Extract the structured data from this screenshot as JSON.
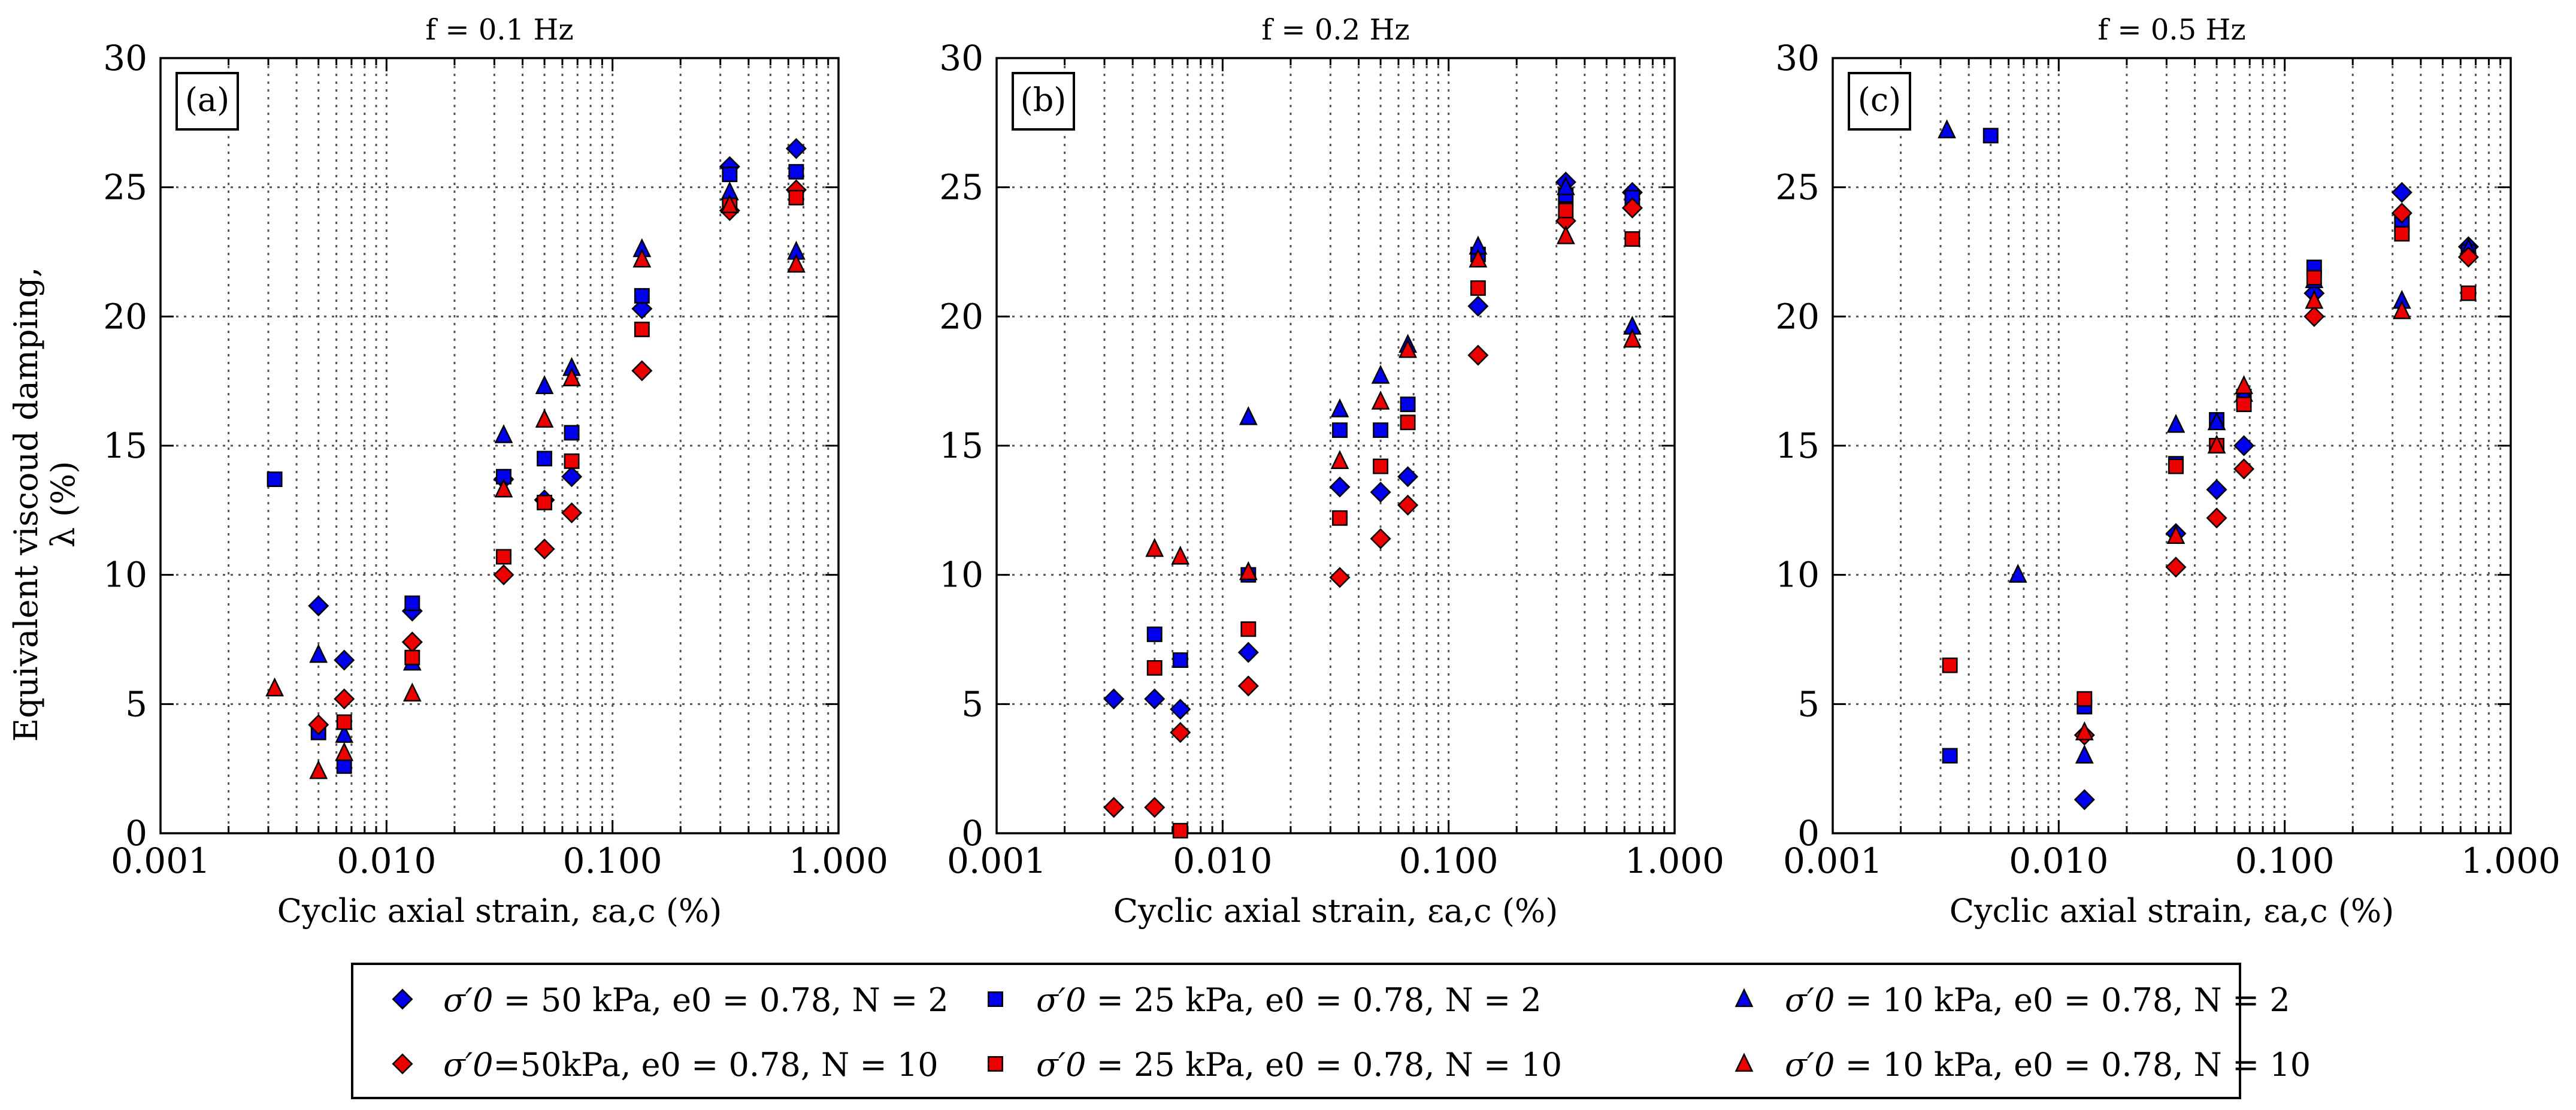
{
  "chart_data": [
    {
      "type": "scatter",
      "title": "f = 0.1 Hz",
      "panel_label": "(a)",
      "xlabel": "Cyclic axial strain, εa,c (%)",
      "ylabel_line1": "Equivalent viscoud damping,",
      "ylabel_line2": "λ (%)",
      "xscale": "log",
      "xlim": [
        0.001,
        1.0
      ],
      "ylim": [
        0,
        30
      ],
      "xticks": [
        0.001,
        0.01,
        0.1,
        1.0
      ],
      "xtick_labels": [
        "0.001",
        "0.010",
        "0.100",
        "1.000"
      ],
      "yticks": [
        0,
        5,
        10,
        15,
        20,
        25,
        30
      ],
      "ytick_labels": [
        "0",
        "5",
        "10",
        "15",
        "20",
        "25",
        "30"
      ],
      "series": [
        {
          "id": "s50n2",
          "x": [
            0.005,
            0.0065,
            0.013,
            0.033,
            0.05,
            0.066,
            0.135,
            0.33,
            0.65
          ],
          "y": [
            8.8,
            6.7,
            8.6,
            13.7,
            12.9,
            13.8,
            20.3,
            25.8,
            26.5
          ]
        },
        {
          "id": "s25n2",
          "x": [
            0.0032,
            0.005,
            0.0065,
            0.013,
            0.033,
            0.05,
            0.066,
            0.135,
            0.33,
            0.65
          ],
          "y": [
            13.7,
            3.9,
            2.6,
            8.9,
            13.8,
            14.5,
            15.5,
            20.8,
            25.5,
            25.6
          ]
        },
        {
          "id": "s10n2",
          "x": [
            0.005,
            0.0065,
            0.013,
            0.033,
            0.05,
            0.066,
            0.135,
            0.33,
            0.65
          ],
          "y": [
            6.9,
            3.8,
            6.6,
            15.4,
            17.3,
            18.0,
            22.6,
            24.8,
            22.5
          ]
        },
        {
          "id": "s50n10",
          "x": [
            0.005,
            0.0065,
            0.013,
            0.033,
            0.05,
            0.066,
            0.135,
            0.33,
            0.65
          ],
          "y": [
            4.2,
            5.2,
            7.4,
            10.0,
            11.0,
            12.4,
            17.9,
            24.1,
            24.9
          ]
        },
        {
          "id": "s25n10",
          "x": [
            0.0065,
            0.013,
            0.033,
            0.05,
            0.066,
            0.135,
            0.33,
            0.65
          ],
          "y": [
            4.3,
            6.8,
            10.7,
            12.8,
            14.4,
            19.5,
            24.3,
            24.6
          ]
        },
        {
          "id": "s10n10",
          "x": [
            0.0032,
            0.005,
            0.0065,
            0.013,
            0.033,
            0.05,
            0.066,
            0.135,
            0.33,
            0.65
          ],
          "y": [
            5.6,
            2.4,
            3.1,
            5.4,
            13.3,
            16.0,
            17.6,
            22.2,
            24.3,
            22.0
          ]
        }
      ]
    },
    {
      "type": "scatter",
      "title": "f = 0.2 Hz",
      "panel_label": "(b)",
      "xlabel": "Cyclic axial strain, εa,c (%)",
      "xscale": "log",
      "xlim": [
        0.001,
        1.0
      ],
      "ylim": [
        0,
        30
      ],
      "xticks": [
        0.001,
        0.01,
        0.1,
        1.0
      ],
      "xtick_labels": [
        "0.001",
        "0.010",
        "0.100",
        "1.000"
      ],
      "yticks": [
        0,
        5,
        10,
        15,
        20,
        25,
        30
      ],
      "ytick_labels": [
        "0",
        "5",
        "10",
        "15",
        "20",
        "25",
        "30"
      ],
      "series": [
        {
          "id": "s50n2",
          "x": [
            0.0033,
            0.005,
            0.0065,
            0.013,
            0.033,
            0.05,
            0.066,
            0.135,
            0.33,
            0.65
          ],
          "y": [
            5.2,
            5.2,
            4.8,
            7.0,
            13.4,
            13.2,
            13.8,
            20.4,
            25.2,
            24.8
          ]
        },
        {
          "id": "s25n2",
          "x": [
            0.005,
            0.0065,
            0.013,
            0.033,
            0.05,
            0.066,
            0.135,
            0.33,
            0.65
          ],
          "y": [
            7.7,
            6.7,
            10.0,
            15.6,
            15.6,
            16.6,
            22.4,
            24.7,
            24.6
          ]
        },
        {
          "id": "s10n2",
          "x": [
            0.013,
            0.033,
            0.05,
            0.066,
            0.135,
            0.33,
            0.65
          ],
          "y": [
            16.1,
            16.4,
            17.7,
            18.9,
            22.7,
            25.0,
            19.6
          ]
        },
        {
          "id": "s50n10",
          "x": [
            0.0033,
            0.005,
            0.0065,
            0.013,
            0.033,
            0.05,
            0.066,
            0.135,
            0.33,
            0.65
          ],
          "y": [
            1.0,
            1.0,
            3.9,
            5.7,
            9.9,
            11.4,
            12.7,
            18.5,
            23.7,
            24.2
          ]
        },
        {
          "id": "s25n10",
          "x": [
            0.005,
            0.0065,
            0.013,
            0.033,
            0.05,
            0.066,
            0.135,
            0.33,
            0.65
          ],
          "y": [
            6.4,
            0.1,
            7.9,
            12.2,
            14.2,
            15.9,
            21.1,
            24.1,
            23.0
          ]
        },
        {
          "id": "s10n10",
          "x": [
            0.005,
            0.0065,
            0.013,
            0.033,
            0.05,
            0.066,
            0.135,
            0.33,
            0.65
          ],
          "y": [
            11.0,
            10.7,
            10.1,
            14.4,
            16.7,
            18.7,
            22.2,
            23.1,
            19.1
          ]
        }
      ]
    },
    {
      "type": "scatter",
      "title": "f = 0.5 Hz",
      "panel_label": "(c)",
      "xlabel": "Cyclic axial strain, εa,c (%)",
      "xscale": "log",
      "xlim": [
        0.001,
        1.0
      ],
      "ylim": [
        0,
        30
      ],
      "xticks": [
        0.001,
        0.01,
        0.1,
        1.0
      ],
      "xtick_labels": [
        "0.001",
        "0.010",
        "0.100",
        "1.000"
      ],
      "yticks": [
        0,
        5,
        10,
        15,
        20,
        25,
        30
      ],
      "ytick_labels": [
        "0",
        "5",
        "10",
        "15",
        "20",
        "25",
        "30"
      ],
      "series": [
        {
          "id": "s50n2",
          "x": [
            0.013,
            0.033,
            0.05,
            0.066,
            0.135,
            0.33,
            0.65
          ],
          "y": [
            1.3,
            11.6,
            13.3,
            15.0,
            20.9,
            24.8,
            22.7
          ]
        },
        {
          "id": "s25n2",
          "x": [
            0.0033,
            0.005,
            0.013,
            0.033,
            0.05,
            0.066,
            0.135,
            0.33,
            0.65
          ],
          "y": [
            3.0,
            27.0,
            4.9,
            14.3,
            16.0,
            16.9,
            21.9,
            23.6,
            22.5
          ]
        },
        {
          "id": "s10n2",
          "x": [
            0.0032,
            0.0066,
            0.013,
            0.033,
            0.05,
            0.066,
            0.135,
            0.33,
            0.65
          ],
          "y": [
            27.2,
            10.0,
            3.0,
            15.8,
            15.9,
            17.0,
            21.4,
            20.6,
            22.6
          ]
        },
        {
          "id": "s50n10",
          "x": [
            0.013,
            0.033,
            0.05,
            0.066,
            0.135,
            0.33,
            0.65
          ],
          "y": [
            3.8,
            10.3,
            12.2,
            14.1,
            20.0,
            24.0,
            22.3
          ]
        },
        {
          "id": "s25n10",
          "x": [
            0.0033,
            0.013,
            0.033,
            0.05,
            0.066,
            0.135,
            0.33,
            0.65
          ],
          "y": [
            6.5,
            5.2,
            14.2,
            15.0,
            16.6,
            21.5,
            23.2,
            20.9
          ]
        },
        {
          "id": "s10n10",
          "x": [
            0.013,
            0.033,
            0.05,
            0.066,
            0.135,
            0.33
          ],
          "y": [
            3.9,
            11.5,
            15.0,
            17.3,
            20.6,
            20.2
          ]
        }
      ]
    }
  ],
  "series_styles": {
    "s50n2": {
      "marker": "diamond",
      "color": "#0000ee"
    },
    "s25n2": {
      "marker": "square",
      "color": "#0000ee"
    },
    "s10n2": {
      "marker": "triangle",
      "color": "#0000ee"
    },
    "s50n10": {
      "marker": "diamond",
      "color": "#ee0000"
    },
    "s25n10": {
      "marker": "square",
      "color": "#ee0000"
    },
    "s10n10": {
      "marker": "triangle",
      "color": "#ee0000"
    }
  },
  "legend": {
    "placement": "bottom-center",
    "entries": [
      {
        "series": "s50n2",
        "sigma": "σ′0",
        "text": " = 50 kPa, e0 = 0.78, N = 2"
      },
      {
        "series": "s25n2",
        "sigma": "σ′0",
        "text": " = 25 kPa, e0 = 0.78, N = 2"
      },
      {
        "series": "s10n2",
        "sigma": "σ′0",
        "text": " = 10 kPa, e0 = 0.78, N = 2"
      },
      {
        "series": "s50n10",
        "sigma": "σ′0",
        "text": "=50kPa, e0 = 0.78, N = 10"
      },
      {
        "series": "s25n10",
        "sigma": "σ′0",
        "text": " = 25 kPa, e0 = 0.78, N = 10"
      },
      {
        "series": "s10n10",
        "sigma": "σ′0",
        "text": " = 10 kPa, e0 = 0.78, N = 10"
      }
    ]
  }
}
